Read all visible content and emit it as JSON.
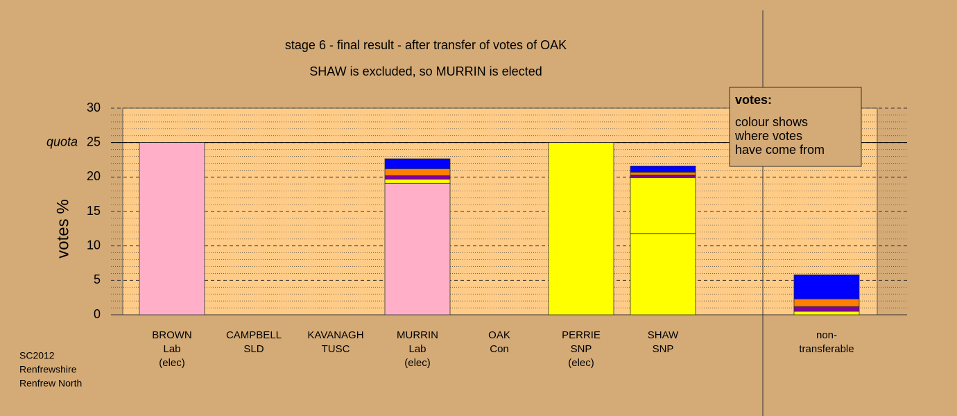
{
  "chart_data": {
    "type": "stacked_bar",
    "title": "stage 6 - final result - after transfer of votes of OAK",
    "subtitle": "SHAW is excluded, so MURRIN is elected",
    "y_label": "votes %",
    "quota": 25,
    "quota_label": "quota",
    "categories": [
      [
        "BROWN",
        "Lab",
        "(elec)"
      ],
      [
        "CAMPBELL",
        "SLD"
      ],
      [
        "KAVANAGH",
        "TUSC"
      ],
      [
        "MURRIN",
        "Lab",
        "(elec)"
      ],
      [
        "OAK",
        "Con"
      ],
      [
        "PERRIE",
        "SNP",
        "(elec)"
      ],
      [
        "SHAW",
        "SNP"
      ],
      [
        "non-",
        "transferable"
      ]
    ],
    "series": [
      {
        "color": "#ffb0c8",
        "values": [
          25,
          0,
          0,
          19.1,
          0,
          0,
          0,
          0
        ]
      },
      {
        "color": "#ffff00",
        "values": [
          0,
          0,
          0,
          0,
          0,
          25,
          11.8,
          0
        ]
      },
      {
        "color": "#ffff00",
        "values": [
          0,
          0,
          0,
          0.6,
          0,
          0,
          8.1,
          0.5
        ]
      },
      {
        "color": "#8000a0",
        "values": [
          0,
          0,
          0,
          0.5,
          0,
          0,
          0.4,
          0.7
        ]
      },
      {
        "color": "#ff8000",
        "values": [
          0,
          0,
          0,
          1.0,
          0,
          0,
          0.4,
          1.1
        ]
      },
      {
        "color": "#0000ff",
        "values": [
          0,
          0,
          0,
          1.45,
          0,
          0,
          0.9,
          3.5
        ]
      }
    ],
    "ylim": [
      0,
      30
    ],
    "yticks": [
      0,
      5,
      10,
      15,
      20,
      25,
      30
    ],
    "minor_yticks": [
      1,
      2,
      3,
      4,
      6,
      7,
      8,
      9,
      11,
      12,
      13,
      14,
      16,
      17,
      18,
      19,
      21,
      22,
      23,
      24,
      26,
      27,
      28,
      29
    ],
    "note": {
      "heading": "votes:",
      "lines": [
        "colour shows",
        "where votes",
        "have come from"
      ]
    },
    "source": [
      "SC2012",
      "Renfrewshire",
      "Renfrew North"
    ]
  }
}
